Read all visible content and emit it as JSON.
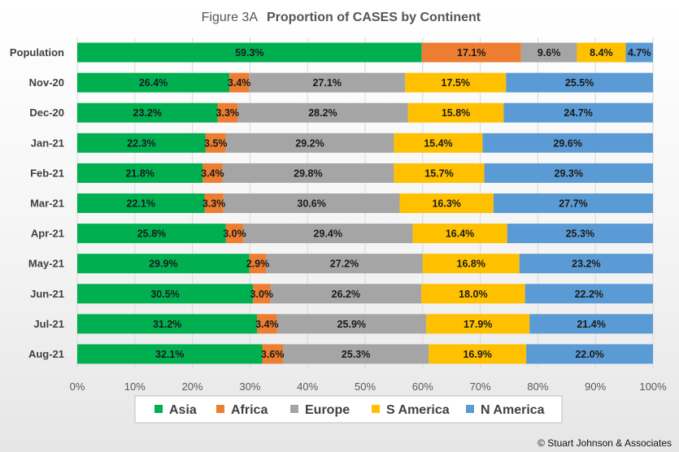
{
  "figure_label": "Figure 3A",
  "copyright": "© Stuart Johnson & Associates",
  "chart_data": {
    "type": "bar",
    "orientation": "horizontal",
    "stacked": "percent",
    "title": "Proportion of CASES by Continent",
    "categories": [
      "Population",
      "Nov-20",
      "Dec-20",
      "Jan-21",
      "Feb-21",
      "Mar-21",
      "Apr-21",
      "May-21",
      "Jun-21",
      "Jul-21",
      "Aug-21"
    ],
    "series": [
      {
        "name": "Asia",
        "color": "#00b050",
        "values": [
          59.3,
          26.4,
          23.2,
          22.3,
          21.8,
          22.1,
          25.8,
          29.9,
          30.5,
          31.2,
          32.1
        ]
      },
      {
        "name": "Africa",
        "color": "#ed7d31",
        "values": [
          17.1,
          3.4,
          3.3,
          3.5,
          3.4,
          3.3,
          3.0,
          2.9,
          3.0,
          3.4,
          3.6
        ]
      },
      {
        "name": "Europe",
        "color": "#a5a5a5",
        "values": [
          9.6,
          27.1,
          28.2,
          29.2,
          29.8,
          30.6,
          29.4,
          27.2,
          26.2,
          25.9,
          25.3
        ]
      },
      {
        "name": "S America",
        "color": "#ffc000",
        "values": [
          8.4,
          17.5,
          15.8,
          15.4,
          15.7,
          16.3,
          16.4,
          16.8,
          18.0,
          17.9,
          16.9
        ]
      },
      {
        "name": "N America",
        "color": "#5b9bd5",
        "values": [
          4.7,
          25.5,
          24.7,
          29.6,
          29.3,
          27.7,
          25.3,
          23.2,
          22.2,
          21.4,
          22.0
        ]
      }
    ],
    "value_format": "percent_1dp",
    "xlim": [
      0,
      100
    ],
    "xticks": [
      "0%",
      "10%",
      "20%",
      "30%",
      "40%",
      "50%",
      "60%",
      "70%",
      "80%",
      "90%",
      "100%"
    ],
    "grid": true,
    "legend_position": "bottom"
  }
}
